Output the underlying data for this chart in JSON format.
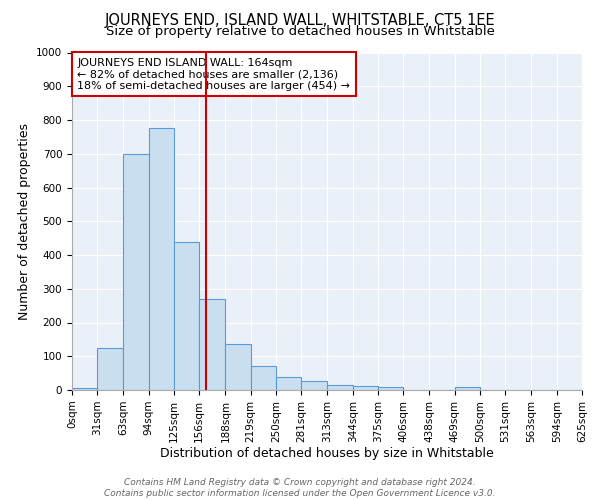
{
  "title": "JOURNEYS END, ISLAND WALL, WHITSTABLE, CT5 1EE",
  "subtitle": "Size of property relative to detached houses in Whitstable",
  "xlabel": "Distribution of detached houses by size in Whitstable",
  "ylabel": "Number of detached properties",
  "bin_edges": [
    0,
    31,
    63,
    94,
    125,
    156,
    188,
    219,
    250,
    281,
    313,
    344,
    375,
    406,
    438,
    469,
    500,
    531,
    563,
    594,
    625
  ],
  "counts": [
    5,
    125,
    700,
    775,
    440,
    270,
    135,
    70,
    40,
    28,
    15,
    12,
    8,
    0,
    0,
    10,
    0,
    0,
    0,
    0
  ],
  "bar_color": "#c9dff0",
  "bar_edge_color": "#5b9bd5",
  "property_size": 164,
  "vline_color": "#cc0000",
  "annotation_text": "JOURNEYS END ISLAND WALL: 164sqm\n← 82% of detached houses are smaller (2,136)\n18% of semi-detached houses are larger (454) →",
  "annotation_box_color": "#ffffff",
  "annotation_box_edge_color": "#cc0000",
  "ylim": [
    0,
    1000
  ],
  "yticks": [
    0,
    100,
    200,
    300,
    400,
    500,
    600,
    700,
    800,
    900,
    1000
  ],
  "bg_color": "#eaf0f8",
  "footer_line1": "Contains HM Land Registry data © Crown copyright and database right 2024.",
  "footer_line2": "Contains public sector information licensed under the Open Government Licence v3.0.",
  "title_fontsize": 10.5,
  "subtitle_fontsize": 9.5,
  "xlabel_fontsize": 9,
  "ylabel_fontsize": 9,
  "tick_fontsize": 7.5,
  "annotation_fontsize": 8,
  "footer_fontsize": 6.5
}
